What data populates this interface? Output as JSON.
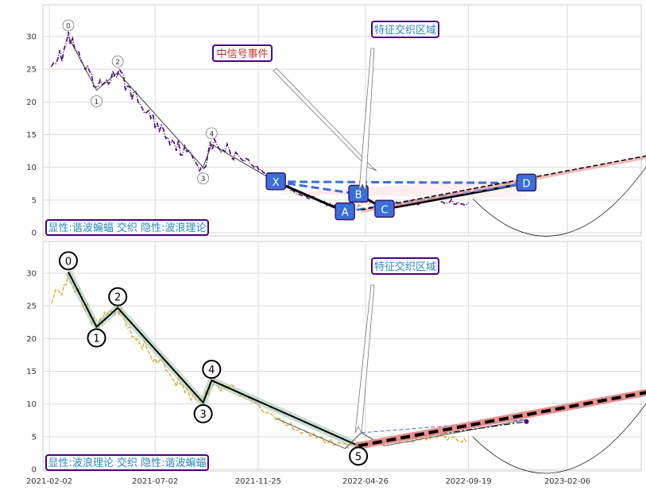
{
  "chart_data": [
    {
      "type": "line",
      "panel": "top",
      "x_ticks": [
        "2021-02-02",
        "2021-07-02",
        "2021-11-25",
        "2022-04-26",
        "2022-09-19",
        "2023-02-06"
      ],
      "y_ticks": [
        0,
        5,
        10,
        15,
        20,
        25,
        30
      ],
      "ylim": [
        -0.5,
        34.5
      ],
      "grid": true,
      "legend_box": "显性:谐波蝙蝠 交织 隐性:波浪理论",
      "annotations": [
        {
          "text": "中信号事件",
          "color": "#c0392b"
        },
        {
          "text": "特征交织区域",
          "color": "#2a8ab8"
        }
      ],
      "wave_points": [
        {
          "label": "0",
          "date": "2021-03-01",
          "value": 30.0
        },
        {
          "label": "1",
          "date": "2021-04-10",
          "value": 21.8
        },
        {
          "label": "2",
          "date": "2021-05-10",
          "value": 24.5
        },
        {
          "label": "3",
          "date": "2021-09-08",
          "value": 10.0
        },
        {
          "label": "4",
          "date": "2021-09-20",
          "value": 13.5
        }
      ],
      "harmonic_points": [
        {
          "label": "X",
          "date": "2021-12-20",
          "value": 7.8
        },
        {
          "label": "A",
          "date": "2022-03-28",
          "value": 3.2
        },
        {
          "label": "B",
          "date": "2022-04-16",
          "value": 5.9
        },
        {
          "label": "C",
          "date": "2022-05-23",
          "value": 3.6
        },
        {
          "label": "D",
          "date": "2022-12-10",
          "value": 7.6
        }
      ],
      "projection": {
        "start": {
          "date": "2022-04-20",
          "value": 3.5
        },
        "end": {
          "date": "2023-06-10",
          "value": 12.0
        }
      }
    },
    {
      "type": "line",
      "panel": "bottom",
      "x_ticks": [
        "2021-02-02",
        "2021-07-02",
        "2021-11-25",
        "2022-04-26",
        "2022-09-19",
        "2023-02-06"
      ],
      "y_ticks": [
        0,
        5,
        10,
        15,
        20,
        25,
        30
      ],
      "ylim": [
        -0.5,
        34.5
      ],
      "grid": true,
      "legend_box": "显性:波浪理论 交织 隐性:谐波蝙蝠",
      "annotations": [
        {
          "text": "特征交织区域",
          "color": "#2a8ab8"
        }
      ],
      "wave_points": [
        {
          "label": "0",
          "date": "2021-03-01",
          "value": 30.2
        },
        {
          "label": "1",
          "date": "2021-04-10",
          "value": 21.8
        },
        {
          "label": "2",
          "date": "2021-05-10",
          "value": 24.7
        },
        {
          "label": "3",
          "date": "2021-09-08",
          "value": 10.2
        },
        {
          "label": "4",
          "date": "2021-09-20",
          "value": 13.6
        },
        {
          "label": "5",
          "date": "2022-04-16",
          "value": 3.6
        }
      ],
      "projection": {
        "start": {
          "date": "2022-04-16",
          "value": 3.6
        },
        "end": {
          "date": "2023-06-10",
          "value": 12.0
        }
      }
    }
  ]
}
